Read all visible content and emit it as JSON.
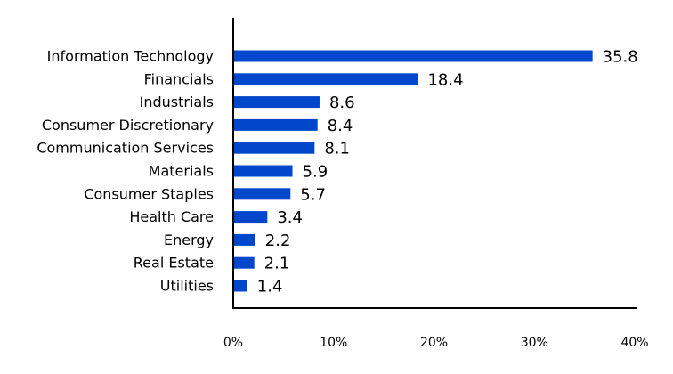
{
  "chart_data": {
    "type": "bar",
    "orientation": "horizontal",
    "categories": [
      "Information Technology",
      "Financials",
      "Industrials",
      "Consumer Discretionary",
      "Communication Services",
      "Materials",
      "Consumer Staples",
      "Health Care",
      "Energy",
      "Real Estate",
      "Utilities"
    ],
    "values": [
      35.8,
      18.4,
      8.6,
      8.4,
      8.1,
      5.9,
      5.7,
      3.4,
      2.2,
      2.1,
      1.4
    ],
    "value_labels": [
      "35.8",
      "18.4",
      "8.6",
      "8.4",
      "8.1",
      "5.9",
      "5.7",
      "3.4",
      "2.2",
      "2.1",
      "1.4"
    ],
    "xlim": [
      0,
      40
    ],
    "xticks": [
      0,
      10,
      20,
      30,
      40
    ],
    "xtick_labels": [
      "0%",
      "10%",
      "20%",
      "30%",
      "40%"
    ],
    "grid": false,
    "bar_color": "#0047CC"
  }
}
